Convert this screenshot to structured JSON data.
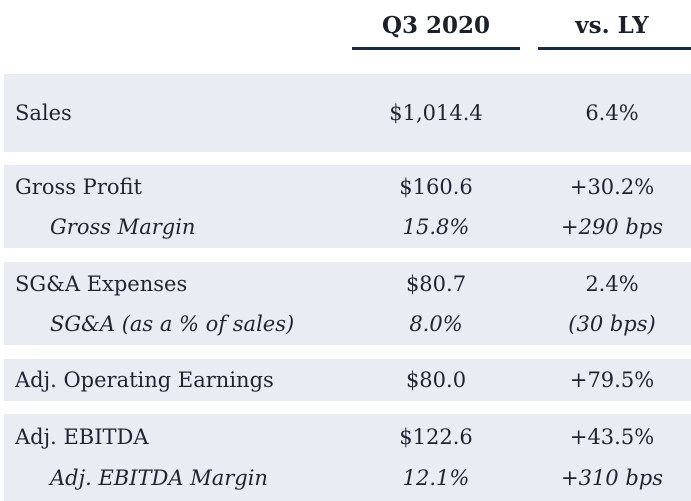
{
  "header": {
    "col_period": "Q3 2020",
    "col_change": "vs. LY"
  },
  "rows": {
    "sales": {
      "label": "Sales",
      "value": "$1,014.4",
      "change": "6.4%"
    },
    "gross_profit": {
      "label": "Gross Profit",
      "value": "$160.6",
      "change": "+30.2%"
    },
    "gross_margin": {
      "label": "Gross Margin",
      "value": "15.8%",
      "change": "+290 bps"
    },
    "sga": {
      "label": "SG&A Expenses",
      "value": "$80.7",
      "change": "2.4%"
    },
    "sga_pct": {
      "label": "SG&A (as a % of sales)",
      "value": "8.0%",
      "change": "(30 bps)"
    },
    "adj_op_earnings": {
      "label": "Adj. Operating Earnings",
      "value": "$80.0",
      "change": "+79.5%"
    },
    "adj_ebitda": {
      "label": "Adj. EBITDA",
      "value": "$122.6",
      "change": "+43.5%"
    },
    "adj_ebitda_margin": {
      "label": "Adj. EBITDA Margin",
      "value": "12.1%",
      "change": "+310 bps"
    }
  },
  "colors": {
    "band_background": "#e9ecf3",
    "header_rule": "#1b2a45",
    "text": "#1f2430"
  }
}
